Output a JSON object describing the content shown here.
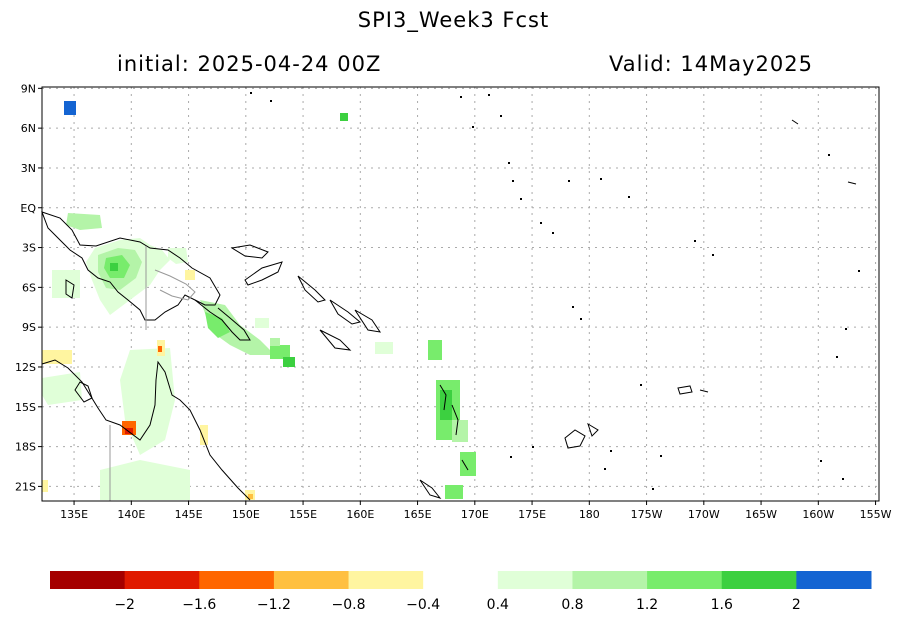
{
  "header": {
    "title": "SPI3_Week3  Fcst",
    "initial": "initial: 2025-04-24  00Z",
    "valid": "Valid: 14May2025"
  },
  "map": {
    "lat_labels": [
      "9N",
      "6N",
      "3N",
      "EQ",
      "3S",
      "6S",
      "9S",
      "12S",
      "15S",
      "18S",
      "21S"
    ],
    "lat_values": [
      9,
      6,
      3,
      0,
      -3,
      -6,
      -9,
      -12,
      -15,
      -18,
      -21
    ],
    "lon_labels": [
      "135E",
      "140E",
      "145E",
      "150E",
      "155E",
      "160E",
      "165E",
      "170E",
      "175E",
      "180",
      "175W",
      "170W",
      "165W",
      "160W",
      "155W"
    ],
    "lon_values": [
      135,
      140,
      145,
      150,
      155,
      160,
      165,
      170,
      175,
      180,
      185,
      190,
      195,
      200,
      205
    ],
    "lon_range": [
      132.2,
      205.3
    ],
    "lat_range": [
      -22.1,
      9.1
    ],
    "grid": true
  },
  "colorbar": {
    "labels": [
      "−2",
      "−1.6",
      "−1.2",
      "−0.8",
      "−0.4",
      "0.4",
      "0.8",
      "1.2",
      "1.6",
      "2"
    ],
    "colors": [
      "#a50000",
      "#e01a00",
      "#ff6600",
      "#ffc040",
      "#fff5a0",
      "#ffffff",
      "#e0ffd8",
      "#b4f4a8",
      "#78ec6c",
      "#3cd040",
      "#1464d2"
    ]
  }
}
